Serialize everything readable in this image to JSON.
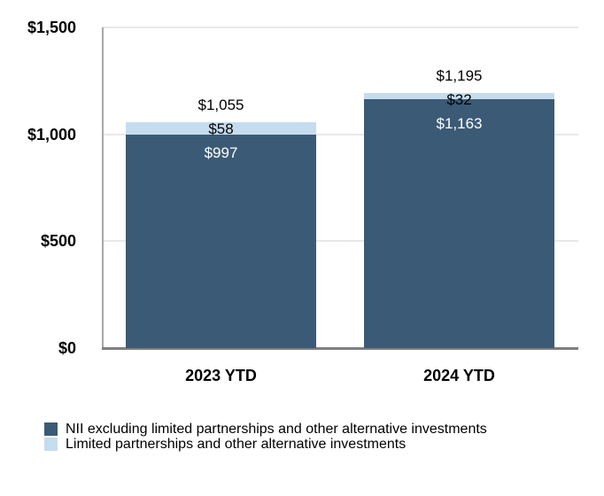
{
  "chart_data": {
    "type": "bar",
    "stacked": true,
    "title": "",
    "xlabel": "",
    "ylabel": "",
    "categories": [
      "2023 YTD",
      "2024 YTD"
    ],
    "series": [
      {
        "name": "NII excluding limited partnerships and other alternative investments",
        "color": "#3b5a76",
        "values": [
          997,
          1163
        ],
        "value_labels": [
          "$997",
          "$1,163"
        ],
        "value_label_color": "#ffffff"
      },
      {
        "name": "Limited partnerships and other alternative investments",
        "color": "#c5dcee",
        "values": [
          58,
          32
        ],
        "value_labels": [
          "$58",
          "$32"
        ],
        "value_label_color": "#000000"
      }
    ],
    "totals": [
      1055,
      1195
    ],
    "total_labels": [
      "$1,055",
      "$1,195"
    ],
    "ylim": [
      0,
      1500
    ],
    "yticks": [
      0,
      500,
      1000,
      1500
    ],
    "ytick_labels": [
      "$0",
      "$500",
      "$1,000",
      "$1,500"
    ],
    "grid": "horizontal",
    "legend_position": "bottom-left"
  },
  "legend": {
    "items": [
      {
        "label": "NII excluding limited partnerships and other alternative investments",
        "color": "#3b5a76"
      },
      {
        "label": "Limited partnerships and other alternative investments",
        "color": "#c5dcee"
      }
    ]
  }
}
